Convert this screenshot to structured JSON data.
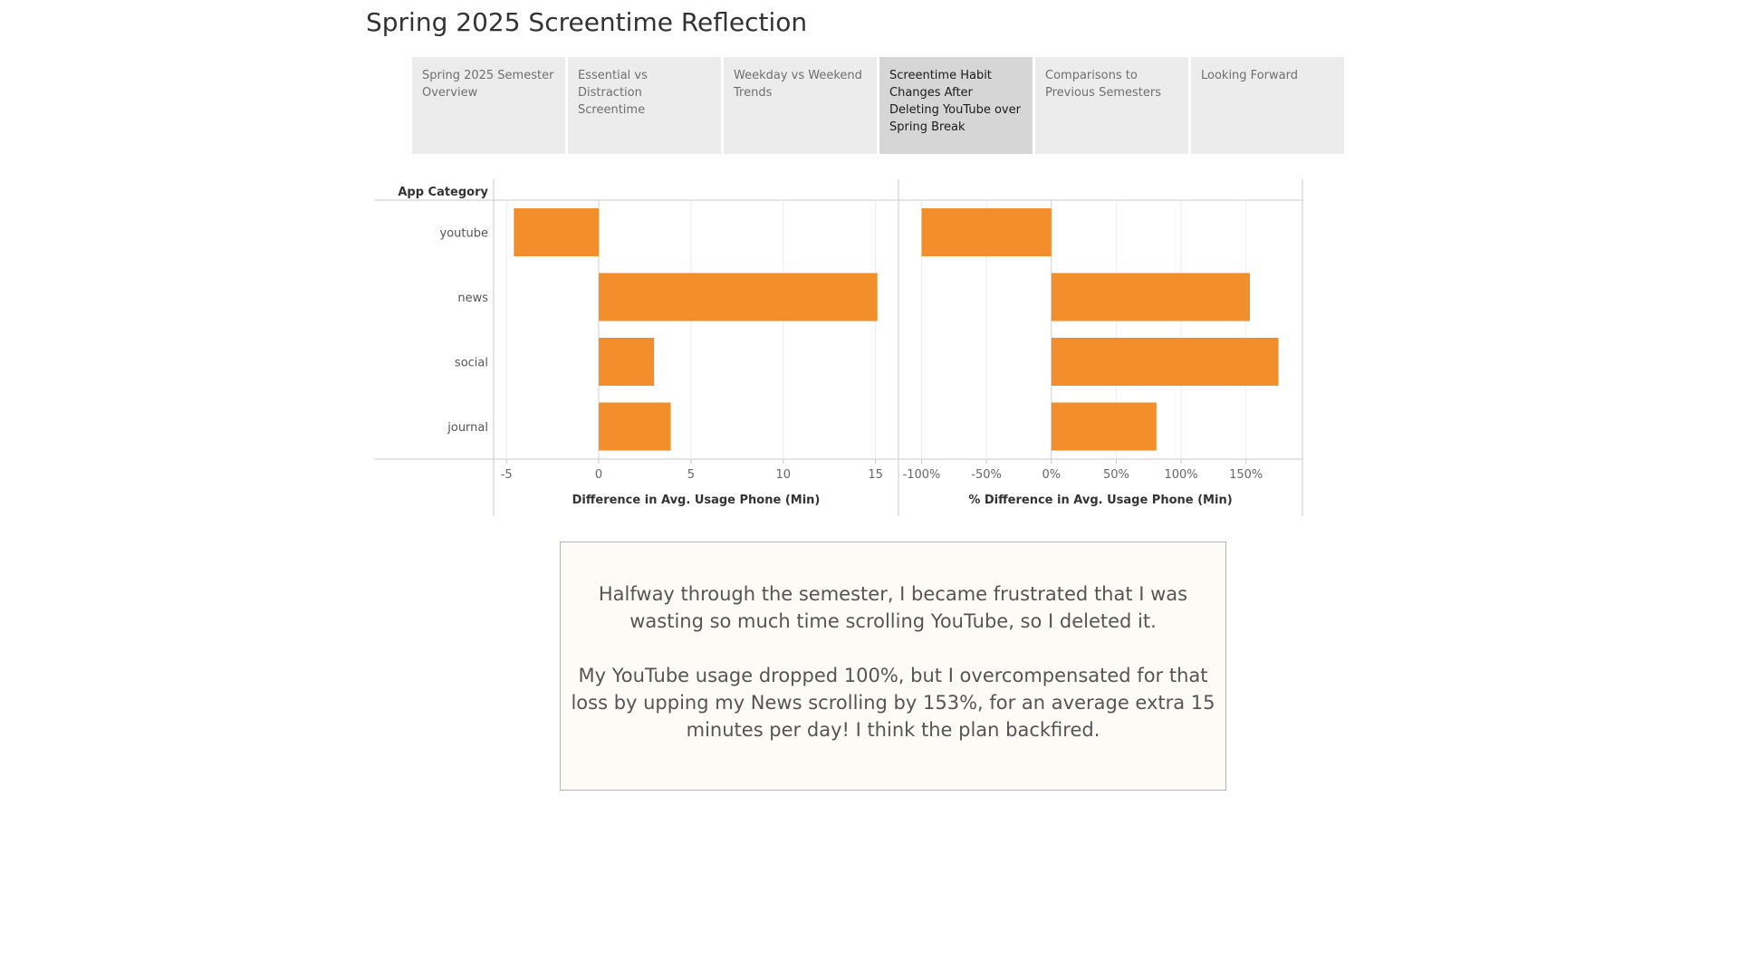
{
  "page": {
    "title": "Spring 2025 Screentime Reflection"
  },
  "tabs": [
    {
      "label": "Spring 2025 Semester Overview",
      "active": false
    },
    {
      "label": "Essential vs Distraction Screentime",
      "active": false
    },
    {
      "label": "Weekday vs Weekend Trends",
      "active": false
    },
    {
      "label": "Screentime Habit Changes After Deleting YouTube over Spring Break",
      "active": true
    },
    {
      "label": "Comparisons to Previous Semesters",
      "active": false
    },
    {
      "label": "Looking Forward",
      "active": false
    }
  ],
  "colors": {
    "bar": "#f28e2b",
    "grid": "#ececec",
    "axis": "#c8c8c8",
    "active_tab": "#d6d6d6",
    "tab": "#ececec"
  },
  "chart_data": [
    {
      "type": "bar",
      "orientation": "horizontal",
      "row_header": "App Category",
      "categories": [
        "youtube",
        "news",
        "social",
        "journal"
      ],
      "values": [
        -4.6,
        15.1,
        3.0,
        3.9
      ],
      "xlabel": "Difference in Avg. Usage Phone (Min)",
      "xlim": [
        -5.5,
        16.0
      ],
      "ticks": [
        -5,
        0,
        5,
        10,
        15
      ],
      "tick_labels": [
        "-5",
        "0",
        "5",
        "10",
        "15"
      ],
      "grid": true
    },
    {
      "type": "bar",
      "orientation": "horizontal",
      "categories": [
        "youtube",
        "news",
        "social",
        "journal"
      ],
      "values": [
        -100,
        153,
        175,
        81
      ],
      "xlabel": "% Difference in Avg. Usage Phone (Min)",
      "xlim": [
        -115,
        190
      ],
      "ticks": [
        -100,
        -50,
        0,
        50,
        100,
        150
      ],
      "tick_labels": [
        "-100%",
        "-50%",
        "0%",
        "50%",
        "100%",
        "150%"
      ],
      "grid": true
    }
  ],
  "note": {
    "paragraph_1": "Halfway through the semester, I became frustrated that I was wasting so much time scrolling YouTube, so I deleted it.",
    "paragraph_2": "My YouTube usage dropped 100%, but I overcompensated for that loss by upping my News scrolling by 153%, for an average extra 15 minutes per day! I think the plan backfired."
  }
}
